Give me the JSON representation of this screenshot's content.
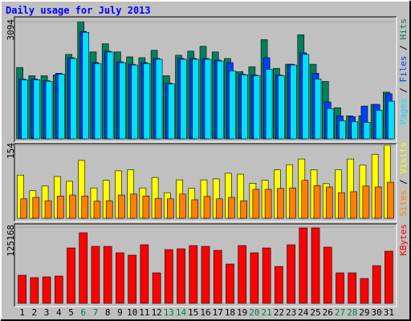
{
  "title": "Daily usage for July 2013",
  "legend_separator": " / ",
  "chart_data": [
    {
      "type": "bar",
      "ylim": [
        0,
        3094
      ],
      "yticks": [
        3094
      ],
      "series": [
        {
          "name": "Hits",
          "color": "#00805c",
          "values": [
            1883,
            1666,
            1666,
            1688,
            2229,
            3094,
            2294,
            2510,
            2294,
            2164,
            2142,
            2337,
            1666,
            2207,
            2315,
            2445,
            2294,
            2121,
            1774,
            1904,
            2618,
            1861,
            1969,
            2748,
            1969,
            1515,
            822,
            606,
            606,
            909,
            1233
          ]
        },
        {
          "name": "Files",
          "color": "#0040ff",
          "values": [
            1580,
            1580,
            1536,
            1731,
            2142,
            2835,
            2012,
            2315,
            2034,
            1969,
            2012,
            2121,
            1471,
            2121,
            2121,
            2121,
            2077,
            2012,
            1710,
            1688,
            2142,
            1688,
            1969,
            2272,
            1731,
            974,
            606,
            584,
            866,
            909,
            1190
          ]
        },
        {
          "name": "Pages",
          "color": "#00e0ff",
          "values": [
            1560,
            1560,
            1520,
            1710,
            2120,
            2810,
            1990,
            2290,
            2010,
            1950,
            1990,
            2100,
            1450,
            2100,
            2100,
            2100,
            2055,
            1796,
            1690,
            1670,
            1839,
            1670,
            1950,
            2229,
            1580,
            801,
            476,
            454,
            433,
            757,
            995
          ]
        }
      ]
    },
    {
      "type": "bar",
      "ylim": [
        0,
        154
      ],
      "yticks": [
        154
      ],
      "series": [
        {
          "name": "Visits",
          "color": "#ffff00",
          "values": [
            91,
            58,
            68,
            88,
            78,
            122,
            64,
            80,
            100,
            102,
            64,
            86,
            54,
            81,
            63,
            81,
            83,
            95,
            93,
            74,
            80,
            102,
            113,
            125,
            102,
            73,
            102,
            125,
            112,
            135,
            154
          ]
        },
        {
          "name": "Sites",
          "color": "#ff8000",
          "values": [
            41,
            44,
            37,
            47,
            49,
            47,
            36,
            37,
            49,
            51,
            47,
            42,
            41,
            51,
            39,
            46,
            41,
            44,
            37,
            61,
            61,
            63,
            64,
            80,
            69,
            66,
            54,
            56,
            68,
            66,
            76
          ]
        }
      ]
    },
    {
      "type": "bar",
      "ylim": [
        0,
        125168
      ],
      "yticks": [
        125168
      ],
      "categories": [
        "1",
        "2",
        "3",
        "4",
        "5",
        "6",
        "7",
        "8",
        "9",
        "10",
        "11",
        "12",
        "13",
        "14",
        "15",
        "16",
        "17",
        "18",
        "19",
        "20",
        "21",
        "22",
        "23",
        "24",
        "25",
        "26",
        "27",
        "28",
        "29",
        "30",
        "31"
      ],
      "category_colors": [
        "#000000",
        "#000000",
        "#000000",
        "#000000",
        "#000000",
        "#008040",
        "#008040",
        "#000000",
        "#000000",
        "#000000",
        "#000000",
        "#000000",
        "#008040",
        "#008040",
        "#000000",
        "#000000",
        "#000000",
        "#000000",
        "#000000",
        "#008040",
        "#008040",
        "#000000",
        "#000000",
        "#000000",
        "#000000",
        "#000000",
        "#008040",
        "#008040",
        "#000000",
        "#000000",
        "#000000"
      ],
      "series": [
        {
          "name": "KBytes",
          "color": "#ff0000",
          "values": [
            46117,
            42163,
            43481,
            44798,
            90913,
            115947,
            93548,
            93548,
            83009,
            79054,
            96185,
            50068,
            88279,
            89597,
            94867,
            93548,
            86960,
            64561,
            94867,
            83009,
            90913,
            60609,
            96185,
            123852,
            123852,
            92231,
            50068,
            50068,
            40845,
            61926,
            85642
          ]
        }
      ]
    }
  ]
}
